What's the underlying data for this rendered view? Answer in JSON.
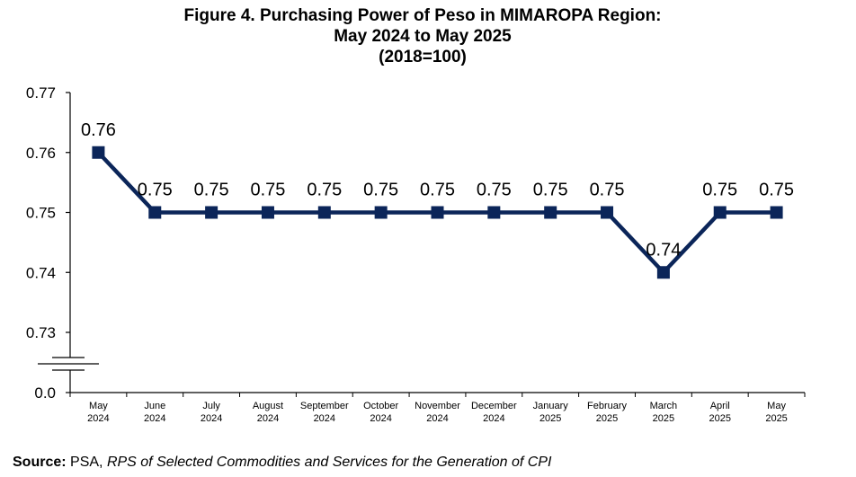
{
  "title": {
    "line1": "Figure 4. Purchasing Power of Peso in MIMAROPA Region:",
    "line2": "May 2024 to May 2025",
    "line3": "(2018=100)"
  },
  "source": {
    "label": "Source:",
    "org": " PSA, ",
    "detail": "RPS of Selected Commodities and Services for the Generation of CPI"
  },
  "colors": {
    "series": "#0b2559",
    "axis": "#000000"
  },
  "chart_data": {
    "type": "line",
    "title": "Figure 4. Purchasing Power of Peso in MIMAROPA Region: May 2024 to May 2025 (2018=100)",
    "categories": [
      [
        "May",
        "2024"
      ],
      [
        "June",
        "2024"
      ],
      [
        "July",
        "2024"
      ],
      [
        "August",
        "2024"
      ],
      [
        "September",
        "2024"
      ],
      [
        "October",
        "2024"
      ],
      [
        "November",
        "2024"
      ],
      [
        "December",
        "2024"
      ],
      [
        "January",
        "2025"
      ],
      [
        "February",
        "2025"
      ],
      [
        "March",
        "2025"
      ],
      [
        "April",
        "2025"
      ],
      [
        "May",
        "2025"
      ]
    ],
    "values": [
      0.76,
      0.75,
      0.75,
      0.75,
      0.75,
      0.75,
      0.75,
      0.75,
      0.75,
      0.75,
      0.74,
      0.75,
      0.75
    ],
    "data_labels": [
      "0.76",
      "0.75",
      "0.75",
      "0.75",
      "0.75",
      "0.75",
      "0.75",
      "0.75",
      "0.75",
      "0.75",
      "0.74",
      "0.75",
      "0.75"
    ],
    "y_ticks": [
      0.73,
      0.74,
      0.75,
      0.76,
      0.77
    ],
    "y_tick_labels": [
      "0.73",
      "0.74",
      "0.75",
      "0.76",
      "0.77"
    ],
    "y_axis_origin_label": "0.0",
    "ylim": [
      0.73,
      0.77
    ],
    "y_axis_break": true,
    "marker": "square",
    "grid": false,
    "legend": "none"
  }
}
